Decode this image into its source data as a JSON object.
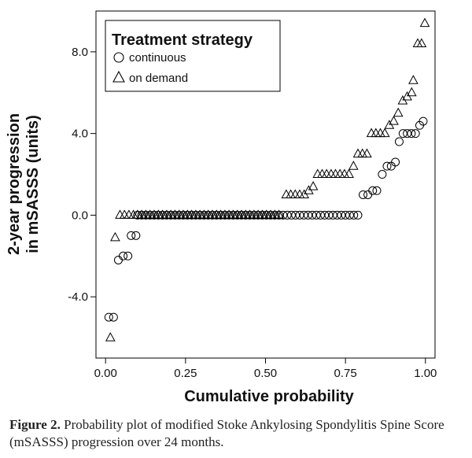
{
  "chart_data": {
    "type": "scatter",
    "xlabel": "Cumulative probability",
    "ylabel_lines": [
      "2-year progression",
      "in mSASSS (units)"
    ],
    "x_ticks": [
      "0.00",
      "0.25",
      "0.50",
      "0.75",
      "1.00"
    ],
    "y_ticks": [
      "-4.0",
      "0.0",
      "4.0",
      "8.0"
    ],
    "xlim": [
      -0.03,
      1.03
    ],
    "ylim": [
      -7.0,
      10.0
    ],
    "grid": false,
    "legend": {
      "title": "Treatment strategy",
      "position": "top-left",
      "entries": [
        "continuous",
        "on demand"
      ]
    },
    "series": [
      {
        "name": "continuous",
        "marker": "circle",
        "points": [
          [
            0.01,
            -5.0
          ],
          [
            0.025,
            -5.0
          ],
          [
            0.04,
            -2.2
          ],
          [
            0.055,
            -2.0
          ],
          [
            0.07,
            -2.0
          ],
          [
            0.08,
            -1.0
          ],
          [
            0.095,
            -1.0
          ],
          [
            0.1,
            0.0
          ],
          [
            0.113,
            0.0
          ],
          [
            0.126,
            0.0
          ],
          [
            0.139,
            0.0
          ],
          [
            0.152,
            0.0
          ],
          [
            0.165,
            0.0
          ],
          [
            0.178,
            0.0
          ],
          [
            0.191,
            0.0
          ],
          [
            0.204,
            0.0
          ],
          [
            0.217,
            0.0
          ],
          [
            0.23,
            0.0
          ],
          [
            0.243,
            0.0
          ],
          [
            0.256,
            0.0
          ],
          [
            0.269,
            0.0
          ],
          [
            0.282,
            0.0
          ],
          [
            0.295,
            0.0
          ],
          [
            0.308,
            0.0
          ],
          [
            0.321,
            0.0
          ],
          [
            0.334,
            0.0
          ],
          [
            0.347,
            0.0
          ],
          [
            0.36,
            0.0
          ],
          [
            0.373,
            0.0
          ],
          [
            0.386,
            0.0
          ],
          [
            0.399,
            0.0
          ],
          [
            0.412,
            0.0
          ],
          [
            0.425,
            0.0
          ],
          [
            0.438,
            0.0
          ],
          [
            0.451,
            0.0
          ],
          [
            0.464,
            0.0
          ],
          [
            0.477,
            0.0
          ],
          [
            0.49,
            0.0
          ],
          [
            0.503,
            0.0
          ],
          [
            0.516,
            0.0
          ],
          [
            0.529,
            0.0
          ],
          [
            0.542,
            0.0
          ],
          [
            0.555,
            0.0
          ],
          [
            0.568,
            0.0
          ],
          [
            0.581,
            0.0
          ],
          [
            0.594,
            0.0
          ],
          [
            0.607,
            0.0
          ],
          [
            0.62,
            0.0
          ],
          [
            0.633,
            0.0
          ],
          [
            0.646,
            0.0
          ],
          [
            0.659,
            0.0
          ],
          [
            0.672,
            0.0
          ],
          [
            0.685,
            0.0
          ],
          [
            0.698,
            0.0
          ],
          [
            0.711,
            0.0
          ],
          [
            0.724,
            0.0
          ],
          [
            0.737,
            0.0
          ],
          [
            0.75,
            0.0
          ],
          [
            0.763,
            0.0
          ],
          [
            0.776,
            0.0
          ],
          [
            0.789,
            0.0
          ],
          [
            0.805,
            1.0
          ],
          [
            0.82,
            1.0
          ],
          [
            0.835,
            1.2
          ],
          [
            0.848,
            1.2
          ],
          [
            0.865,
            2.0
          ],
          [
            0.88,
            2.4
          ],
          [
            0.893,
            2.4
          ],
          [
            0.906,
            2.6
          ],
          [
            0.918,
            3.6
          ],
          [
            0.93,
            4.0
          ],
          [
            0.943,
            4.0
          ],
          [
            0.956,
            4.0
          ],
          [
            0.969,
            4.0
          ],
          [
            0.982,
            4.4
          ],
          [
            0.993,
            4.6
          ]
        ]
      },
      {
        "name": "on demand",
        "marker": "triangle",
        "points": [
          [
            0.015,
            -6.0
          ],
          [
            0.03,
            -1.1
          ],
          [
            0.045,
            0.0
          ],
          [
            0.059,
            0.0
          ],
          [
            0.073,
            0.0
          ],
          [
            0.087,
            0.0
          ],
          [
            0.1,
            0.0
          ],
          [
            0.113,
            0.0
          ],
          [
            0.126,
            0.0
          ],
          [
            0.139,
            0.0
          ],
          [
            0.152,
            0.0
          ],
          [
            0.165,
            0.0
          ],
          [
            0.178,
            0.0
          ],
          [
            0.191,
            0.0
          ],
          [
            0.204,
            0.0
          ],
          [
            0.217,
            0.0
          ],
          [
            0.23,
            0.0
          ],
          [
            0.243,
            0.0
          ],
          [
            0.256,
            0.0
          ],
          [
            0.269,
            0.0
          ],
          [
            0.282,
            0.0
          ],
          [
            0.295,
            0.0
          ],
          [
            0.308,
            0.0
          ],
          [
            0.321,
            0.0
          ],
          [
            0.334,
            0.0
          ],
          [
            0.347,
            0.0
          ],
          [
            0.36,
            0.0
          ],
          [
            0.373,
            0.0
          ],
          [
            0.386,
            0.0
          ],
          [
            0.399,
            0.0
          ],
          [
            0.412,
            0.0
          ],
          [
            0.425,
            0.0
          ],
          [
            0.438,
            0.0
          ],
          [
            0.451,
            0.0
          ],
          [
            0.464,
            0.0
          ],
          [
            0.477,
            0.0
          ],
          [
            0.49,
            0.0
          ],
          [
            0.503,
            0.0
          ],
          [
            0.516,
            0.0
          ],
          [
            0.529,
            0.0
          ],
          [
            0.542,
            0.0
          ],
          [
            0.565,
            1.0
          ],
          [
            0.579,
            1.0
          ],
          [
            0.593,
            1.0
          ],
          [
            0.607,
            1.0
          ],
          [
            0.621,
            1.0
          ],
          [
            0.635,
            1.2
          ],
          [
            0.649,
            1.4
          ],
          [
            0.663,
            2.0
          ],
          [
            0.677,
            2.0
          ],
          [
            0.691,
            2.0
          ],
          [
            0.705,
            2.0
          ],
          [
            0.719,
            2.0
          ],
          [
            0.733,
            2.0
          ],
          [
            0.747,
            2.0
          ],
          [
            0.761,
            2.0
          ],
          [
            0.775,
            2.4
          ],
          [
            0.789,
            3.0
          ],
          [
            0.803,
            3.0
          ],
          [
            0.817,
            3.0
          ],
          [
            0.831,
            4.0
          ],
          [
            0.845,
            4.0
          ],
          [
            0.859,
            4.0
          ],
          [
            0.873,
            4.0
          ],
          [
            0.887,
            4.4
          ],
          [
            0.901,
            4.6
          ],
          [
            0.915,
            5.0
          ],
          [
            0.929,
            5.6
          ],
          [
            0.943,
            5.8
          ],
          [
            0.957,
            6.0
          ],
          [
            0.962,
            6.6
          ],
          [
            0.976,
            8.4
          ],
          [
            0.988,
            8.4
          ],
          [
            0.998,
            9.4
          ]
        ]
      }
    ]
  },
  "caption": {
    "label": "Figure 2.",
    "text": "Probability plot of modified Stoke Ankylosing Spondylitis Spine Score (mSASSS) progression over 24 months."
  }
}
